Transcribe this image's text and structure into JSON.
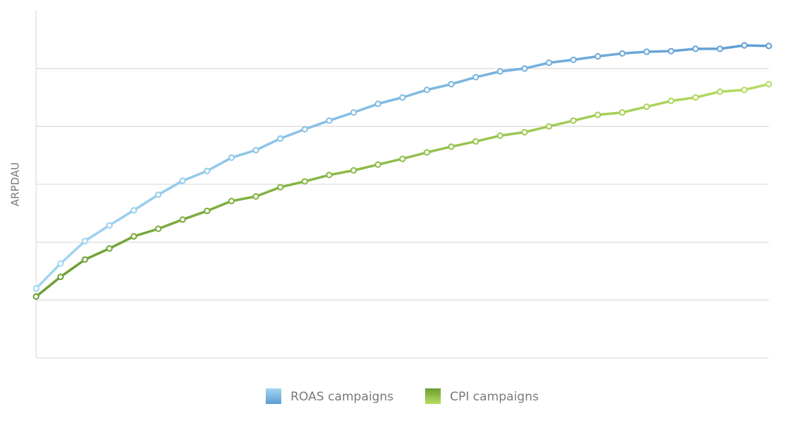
{
  "chart_data": {
    "type": "line",
    "y_label": "ARPDAU",
    "ylim": [
      0,
      6
    ],
    "gridlines": [
      1,
      2,
      3,
      4,
      5
    ],
    "series": [
      {
        "name": "ROAS campaigns",
        "colors": [
          "#a3d6f2",
          "#5d9dd3"
        ],
        "values": [
          1.2,
          1.63,
          2.02,
          2.29,
          2.55,
          2.82,
          3.06,
          3.23,
          3.46,
          3.59,
          3.79,
          3.95,
          4.1,
          4.24,
          4.39,
          4.5,
          4.63,
          4.73,
          4.85,
          4.95,
          5.0,
          5.1,
          5.15,
          5.21,
          5.26,
          5.29,
          5.3,
          5.34,
          5.34,
          5.4,
          5.39
        ]
      },
      {
        "name": "CPI campaigns",
        "colors": [
          "#6b9e33",
          "#b6dd62"
        ],
        "values": [
          1.06,
          1.4,
          1.7,
          1.89,
          2.1,
          2.23,
          2.39,
          2.54,
          2.71,
          2.79,
          2.95,
          3.05,
          3.16,
          3.24,
          3.34,
          3.44,
          3.55,
          3.65,
          3.74,
          3.84,
          3.9,
          4.0,
          4.1,
          4.2,
          4.24,
          4.34,
          4.44,
          4.5,
          4.6,
          4.63,
          4.73
        ]
      }
    ]
  }
}
